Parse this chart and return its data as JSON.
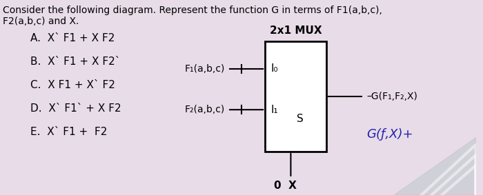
{
  "background_color": "#e8dce8",
  "title_line1": "Consider the following diagram. Represent the function G in terms of F1(a,b,c),",
  "title_line2": "F2(a,b,c) and X.",
  "options": [
    "A.  X` F1 + X F2",
    "B.  X` F1 + X F2`",
    "C.  X F1 + X` F2",
    "D.  X` F1` + X F2",
    "E.  X` F1 +  F2"
  ],
  "mux_label": "2x1 MUX",
  "f1_label": "F₁(a,b,c)",
  "f2_label": "F₂(a,b,c)",
  "i0_label": "I₀",
  "i1_label": "I₁",
  "s_label": "S",
  "x_label": "0  X",
  "output_label": "–G(F₁,F₂,X)",
  "output_label2": "G(ƒ,X)+",
  "box_color": "#000000",
  "text_color": "#000000",
  "line_color": "#000000",
  "title_fontsize": 10,
  "option_fontsize": 11,
  "mux_fontsize": 11,
  "label_fontsize": 10,
  "inner_fontsize": 11
}
